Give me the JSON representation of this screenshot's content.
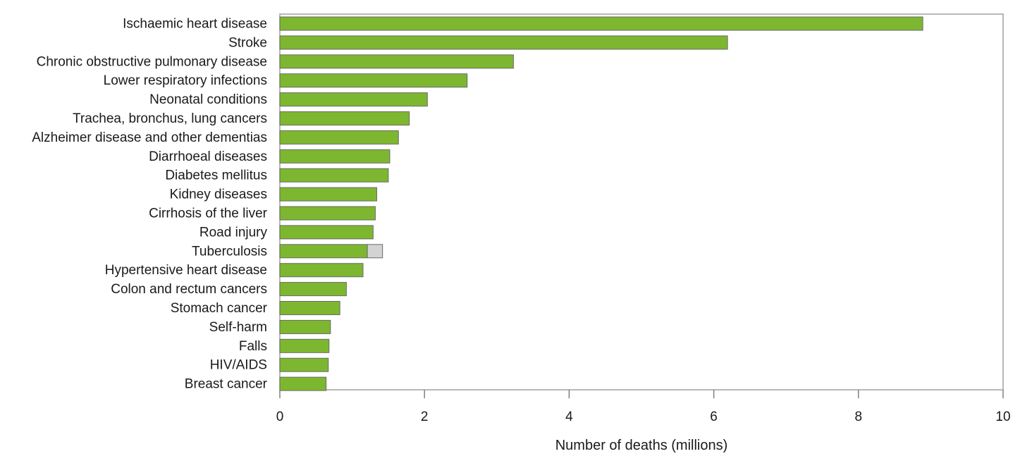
{
  "chart_data": {
    "type": "bar",
    "orientation": "horizontal",
    "stacked": true,
    "title": "",
    "xlabel": "Number of deaths (millions)",
    "ylabel": "",
    "xlim": [
      0,
      10
    ],
    "xticks": [
      0,
      2,
      4,
      6,
      8,
      10
    ],
    "grid": false,
    "legend": "none",
    "categories": [
      "Ischaemic heart disease",
      "Stroke",
      "Chronic obstructive pulmonary disease",
      "Lower respiratory infections",
      "Neonatal conditions",
      "Trachea, bronchus, lung cancers",
      "Alzheimer disease and other dementias",
      "Diarrhoeal diseases",
      "Diabetes mellitus",
      "Kidney diseases",
      "Cirrhosis of the liver",
      "Road injury",
      "Tuberculosis",
      "Hypertensive heart disease",
      "Colon and rectum cancers",
      "Stomach cancer",
      "Self-harm",
      "Falls",
      "HIV/AIDS",
      "Breast cancer"
    ],
    "series": [
      {
        "color": "#7db72f",
        "values": [
          8.89,
          6.19,
          3.23,
          2.59,
          2.04,
          1.79,
          1.64,
          1.52,
          1.5,
          1.34,
          1.32,
          1.29,
          1.21,
          1.15,
          0.92,
          0.83,
          0.7,
          0.68,
          0.67,
          0.64
        ]
      },
      {
        "color": "#d3d3d3",
        "values": [
          0,
          0,
          0,
          0,
          0,
          0,
          0,
          0,
          0,
          0,
          0,
          0,
          0.21,
          0,
          0,
          0,
          0,
          0,
          0,
          0
        ]
      }
    ]
  }
}
